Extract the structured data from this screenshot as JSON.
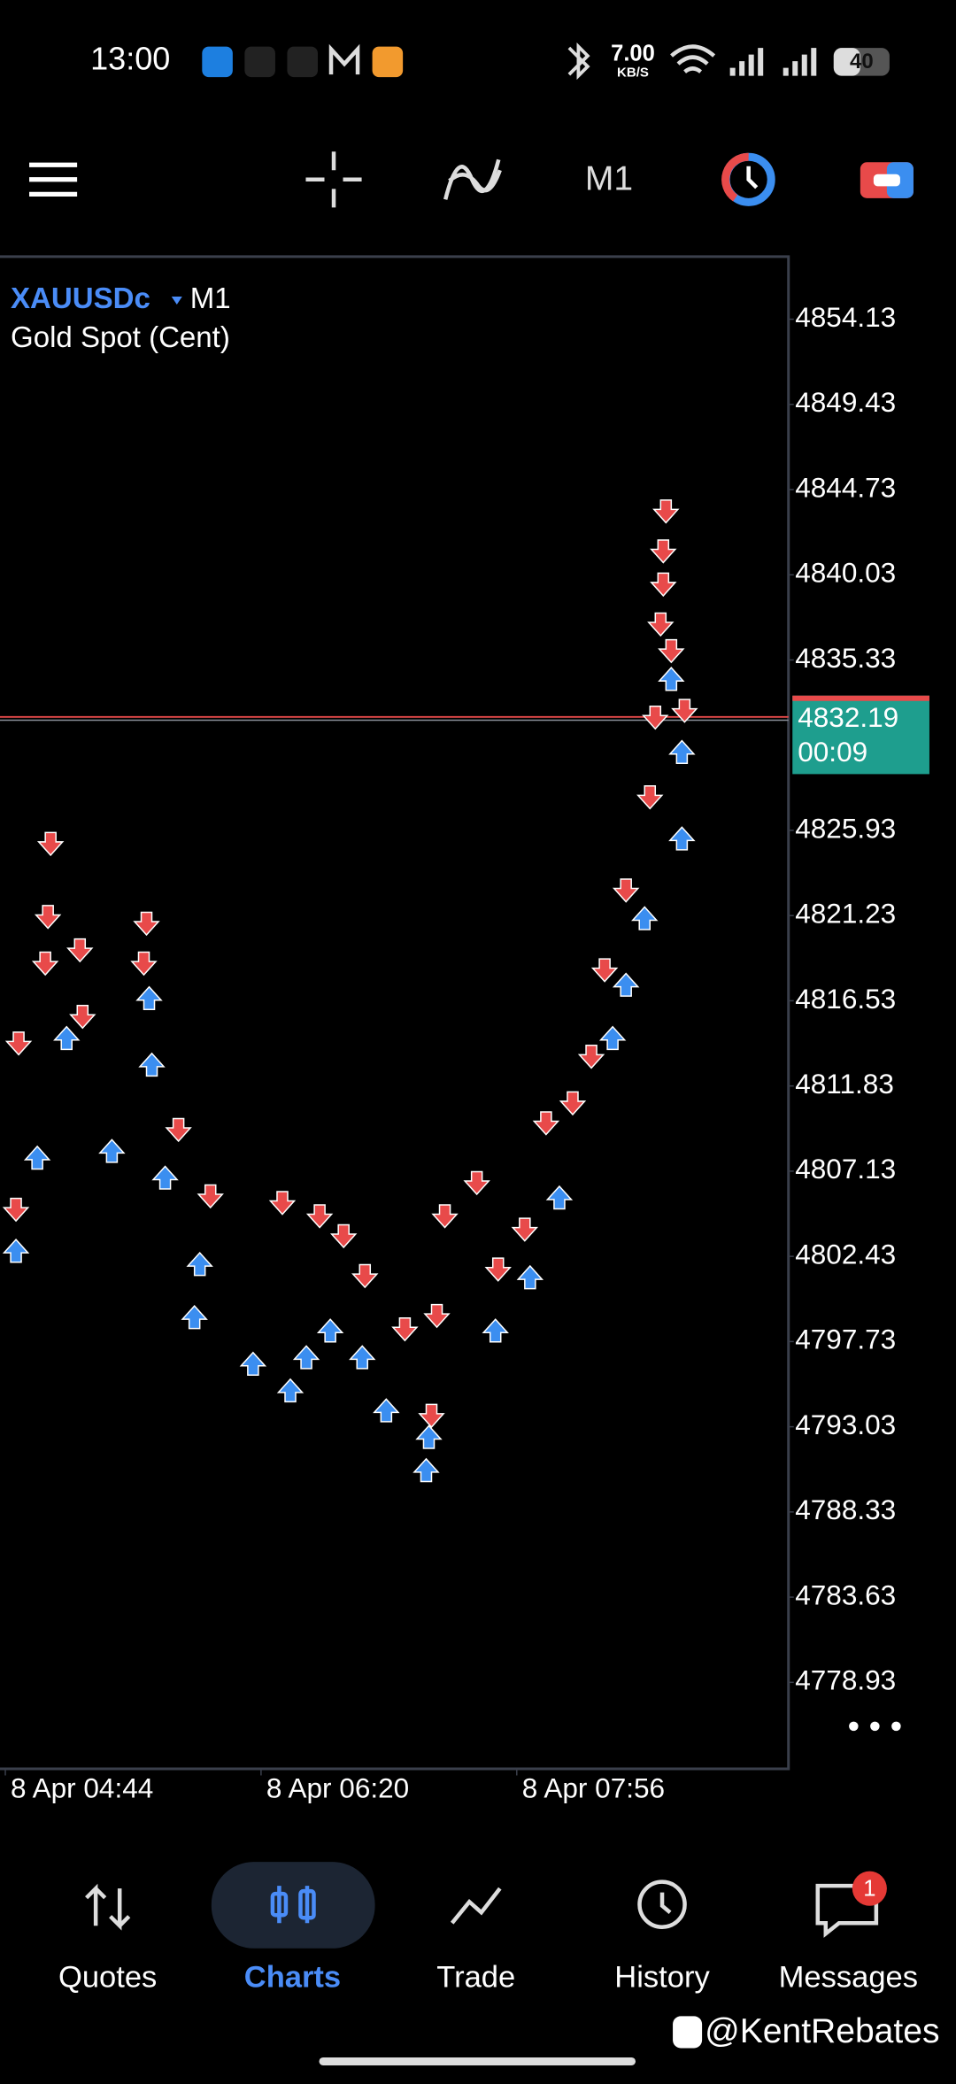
{
  "status_bar": {
    "time": "13:00",
    "speed": "7.00",
    "speed_unit": "KB/S",
    "battery": "40"
  },
  "toolbar": {
    "timeframe": "M1"
  },
  "chart_data": {
    "type": "scatter",
    "title": "XAUUSDc",
    "timeframe": "M1",
    "subtitle": "Gold Spot (Cent)",
    "xlim": [
      "8 Apr 04:42",
      "8 Apr 09:38"
    ],
    "xticks": [
      "8 Apr 04:44",
      "8 Apr 06:20",
      "8 Apr 07:56"
    ],
    "ylim": [
      4774.16,
      4857.58
    ],
    "yticks": [
      4854.13,
      4849.43,
      4844.73,
      4840.03,
      4835.33,
      4825.93,
      4821.23,
      4816.53,
      4811.83,
      4807.13,
      4802.43,
      4797.73,
      4793.03,
      4788.33,
      4783.63,
      4778.93
    ],
    "current_price": 4832.19,
    "countdown": "00:09",
    "series": [
      {
        "color": "#e84a4a",
        "marker": "down",
        "x": [
          "8 Apr 04:48",
          "8 Apr 04:49",
          "8 Apr 05:01",
          "8 Apr 05:00",
          "8 Apr 04:59",
          "8 Apr 05:12",
          "8 Apr 05:37",
          "8 Apr 05:36",
          "8 Apr 05:13",
          "8 Apr 05:49",
          "8 Apr 06:01",
          "8 Apr 06:28",
          "8 Apr 06:42",
          "8 Apr 06:51",
          "8 Apr 06:59",
          "8 Apr 07:14",
          "8 Apr 07:24",
          "8 Apr 07:26",
          "8 Apr 07:29",
          "8 Apr 07:41",
          "8 Apr 07:49",
          "8 Apr 07:59",
          "8 Apr 08:07",
          "8 Apr 08:17",
          "8 Apr 08:24",
          "8 Apr 08:29",
          "8 Apr 08:37",
          "8 Apr 08:46",
          "8 Apr 08:48",
          "8 Apr 08:52",
          "8 Apr 08:51",
          "8 Apr 08:51",
          "8 Apr 08:50",
          "8 Apr 08:54",
          "8 Apr 08:59"
        ],
        "values": [
          4804.97,
          4814.14,
          4825.15,
          4821.12,
          4818.55,
          4819.28,
          4820.75,
          4818.55,
          4815.61,
          4809.37,
          4805.71,
          4805.34,
          4804.61,
          4803.51,
          4801.31,
          4798.37,
          4793.6,
          4799.11,
          4804.61,
          4806.44,
          4801.67,
          4803.87,
          4809.74,
          4810.84,
          4813.41,
          4818.18,
          4822.58,
          4827.72,
          4832.12,
          4843.49,
          4841.29,
          4839.46,
          4837.26,
          4835.79,
          4832.49
        ]
      },
      {
        "color": "#3b8ef0",
        "marker": "up",
        "x": [
          "8 Apr 04:48",
          "8 Apr 04:56",
          "8 Apr 05:07",
          "8 Apr 05:24",
          "8 Apr 05:38",
          "8 Apr 05:39",
          "8 Apr 05:44",
          "8 Apr 05:55",
          "8 Apr 05:57",
          "8 Apr 06:17",
          "8 Apr 06:31",
          "8 Apr 06:37",
          "8 Apr 06:46",
          "8 Apr 06:58",
          "8 Apr 07:07",
          "8 Apr 07:22",
          "8 Apr 07:23",
          "8 Apr 07:48",
          "8 Apr 08:01",
          "8 Apr 08:12",
          "8 Apr 08:32",
          "8 Apr 08:37",
          "8 Apr 08:44",
          "8 Apr 08:54",
          "8 Apr 08:58",
          "8 Apr 08:58"
        ],
        "values": [
          4802.77,
          4807.91,
          4814.51,
          4808.28,
          4816.71,
          4813.04,
          4806.81,
          4799.11,
          4802.04,
          4796.54,
          4795.07,
          4796.9,
          4798.37,
          4796.9,
          4793.97,
          4790.67,
          4792.5,
          4798.37,
          4801.31,
          4805.71,
          4814.51,
          4817.45,
          4821.12,
          4834.32,
          4830.29,
          4825.52
        ]
      }
    ]
  },
  "bottom_nav": {
    "items": [
      "Quotes",
      "Charts",
      "Trade",
      "History",
      "Messages"
    ],
    "badge": "1"
  },
  "watermark": "@KentRebates"
}
